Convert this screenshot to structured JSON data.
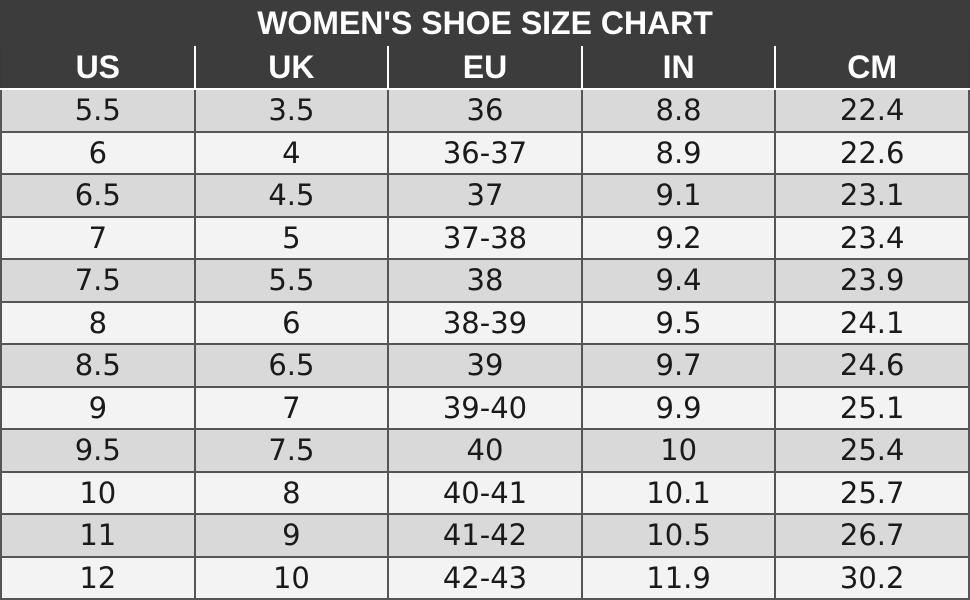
{
  "title": "WOMEN'S SHOE SIZE CHART",
  "columns": [
    "US",
    "UK",
    "EU",
    "IN",
    "CM"
  ],
  "rows": [
    [
      "5.5",
      "3.5",
      "36",
      "8.8",
      "22.4"
    ],
    [
      "6",
      "4",
      "36-37",
      "8.9",
      "22.6"
    ],
    [
      "6.5",
      "4.5",
      "37",
      "9.1",
      "23.1"
    ],
    [
      "7",
      "5",
      "37-38",
      "9.2",
      "23.4"
    ],
    [
      "7.5",
      "5.5",
      "38",
      "9.4",
      "23.9"
    ],
    [
      "8",
      "6",
      "38-39",
      "9.5",
      "24.1"
    ],
    [
      "8.5",
      "6.5",
      "39",
      "9.7",
      "24.6"
    ],
    [
      "9",
      "7",
      "39-40",
      "9.9",
      "25.1"
    ],
    [
      "9.5",
      "7.5",
      "40",
      "10",
      "25.4"
    ],
    [
      "10",
      "8",
      "40-41",
      "10.1",
      "25.7"
    ],
    [
      "11",
      "9",
      "41-42",
      "10.5",
      "26.7"
    ],
    [
      "12",
      "10",
      "42-43",
      "11.9",
      "30.2"
    ]
  ],
  "colors": {
    "header_bg": "#3c3c3c",
    "header_text": "#ffffff",
    "row_shaded": "#d9d9d9",
    "row_light": "#f3f3f3"
  }
}
